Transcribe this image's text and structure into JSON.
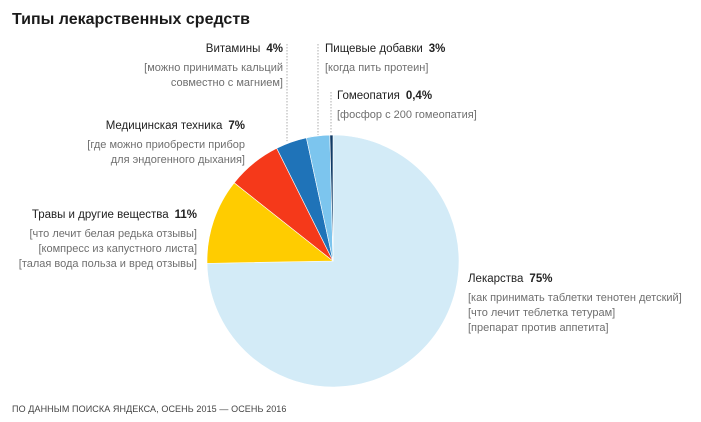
{
  "chart_data": {
    "type": "pie",
    "title": "Типы лекарственных средств",
    "source_note": "ПО ДАННЫМ ПОИСКА ЯНДЕКСА, ОСЕНЬ 2015 — ОСЕНЬ 2016",
    "slices": [
      {
        "name": "Лекарства",
        "value": 75,
        "value_label": "75%",
        "color": "#d3ebf7",
        "queries": [
          "[как принимать таблетки тенотен детский]",
          "[что лечит теблетка тетурам]",
          "[препарат против аппетита]"
        ]
      },
      {
        "name": "Травы и другие вещества",
        "value": 11,
        "value_label": "11%",
        "color": "#ffcc00",
        "queries": [
          "[что лечит белая редька отзывы]",
          "[компресс из капустного листа]",
          "[талая вода польза и вред отзывы]"
        ]
      },
      {
        "name": "Медицинская техника",
        "value": 7,
        "value_label": "7%",
        "color": "#f5391a",
        "queries": [
          "[где можно приобрести прибор",
          "для эндогенного дыхания]"
        ]
      },
      {
        "name": "Витамины",
        "value": 4,
        "value_label": "4%",
        "color": "#1f73b8",
        "queries": [
          "[можно принимать кальций",
          "совместно с магнием]"
        ]
      },
      {
        "name": "Пищевые добавки",
        "value": 3,
        "value_label": "3%",
        "color": "#7cc5ee",
        "queries": [
          "[когда пить протеин]"
        ]
      },
      {
        "name": "Гомеопатия",
        "value": 0.4,
        "value_label": "0,4%",
        "color": "#0f3a66",
        "queries": [
          "[фосфор с 200 гомеопатия]"
        ]
      }
    ]
  }
}
